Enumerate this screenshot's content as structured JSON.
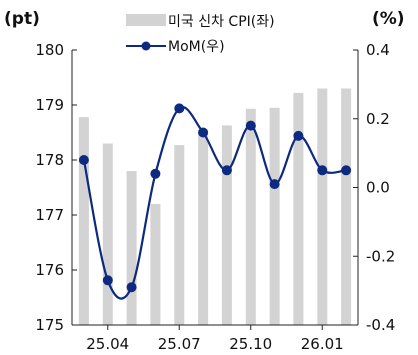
{
  "chart_data": {
    "type": "bar+line",
    "left_axis_unit": "(pt)",
    "right_axis_unit": "(%)",
    "legend": [
      {
        "name": "미국 신차 CPI(좌)",
        "kind": "bar"
      },
      {
        "name": "MoM(우)",
        "kind": "line"
      }
    ],
    "categories": [
      "25.03",
      "25.04",
      "25.05",
      "25.06",
      "25.07",
      "25.08",
      "25.09",
      "25.10",
      "25.11",
      "25.12",
      "26.01",
      "26.02"
    ],
    "x_tick_labels": [
      "25.04",
      "25.07",
      "25.10",
      "26.01"
    ],
    "x_tick_label_indices": [
      1,
      4,
      7,
      10
    ],
    "left_axis": {
      "min": 175,
      "max": 180,
      "ticks": [
        "175",
        "176",
        "177",
        "178",
        "179",
        "180"
      ]
    },
    "right_axis": {
      "min": -0.4,
      "max": 0.4,
      "ticks": [
        "-0.4",
        "-0.2",
        "0.0",
        "0.2",
        "0.4"
      ]
    },
    "series": [
      {
        "name": "미국 신차 CPI(좌)",
        "axis": "left",
        "values": [
          178.78,
          178.3,
          177.8,
          177.2,
          178.27,
          178.55,
          178.63,
          178.93,
          178.95,
          179.22,
          179.3,
          179.3
        ]
      },
      {
        "name": "MoM(우)",
        "axis": "right",
        "values": [
          0.08,
          -0.27,
          -0.29,
          0.04,
          0.23,
          0.16,
          0.05,
          0.18,
          0.01,
          0.15,
          0.05,
          0.05
        ]
      }
    ],
    "colors": {
      "bar": "#d3d3d3",
      "line": "#0d2a80",
      "axis": "#222222"
    },
    "grid": false
  }
}
